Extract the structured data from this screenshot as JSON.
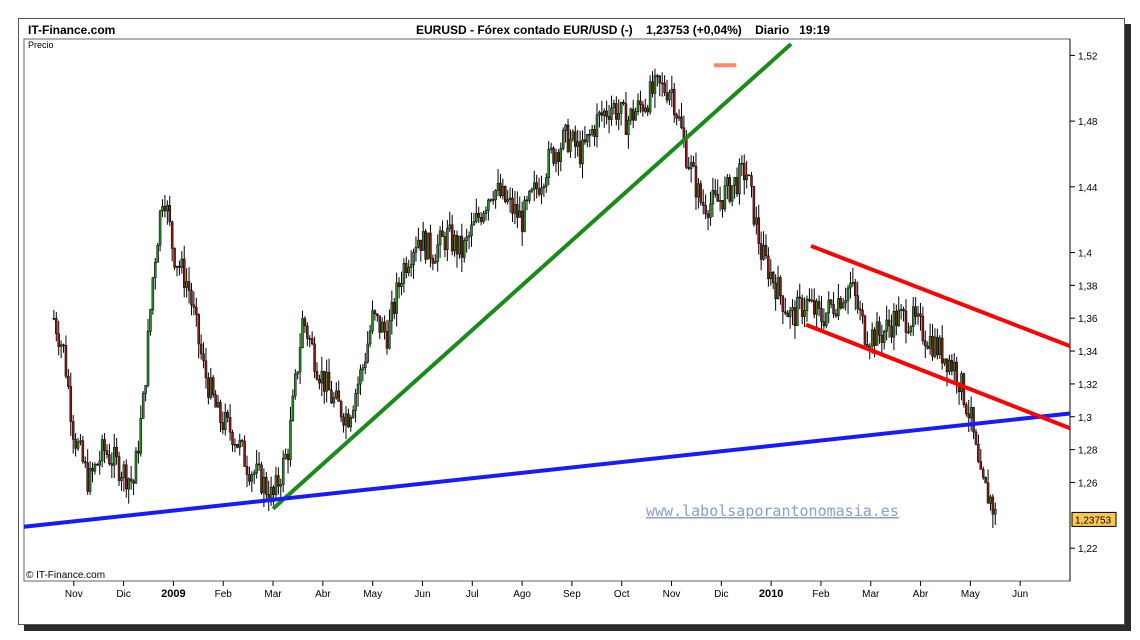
{
  "brand": "IT-Finance.com",
  "header": {
    "symbol": "EURUSD",
    "description": "Fórex contado EUR/USD (-)",
    "last": "1,23753",
    "change": "(+0,04%)",
    "period": "Diario",
    "time": "19:19"
  },
  "copyright": "© IT-Finance.com",
  "watermark": "www.labolsaporantonomasia.es",
  "colors": {
    "up_trend": "#1a8a1a",
    "support": "#1a1aff",
    "channel": "#ff0000",
    "top_mark": "#ff8866",
    "candle": "#000000",
    "last_box": "#ffc850"
  },
  "chart_data": {
    "type": "candlestick",
    "title": "EURUSD - Fórex contado EUR/USD (-)",
    "ylabel": "Precio",
    "ylim": [
      1.2,
      1.53
    ],
    "y_ticks": [
      "1,52",
      "1,48",
      "1,44",
      "1,4",
      "1,38",
      "1,36",
      "1,34",
      "1,32",
      "1,3",
      "1,28",
      "1,26",
      "1,22"
    ],
    "y_tick_values": [
      1.52,
      1.48,
      1.44,
      1.4,
      1.38,
      1.36,
      1.34,
      1.32,
      1.3,
      1.28,
      1.26,
      1.22
    ],
    "x_ticks": [
      "Nov",
      "Dic",
      "2009",
      "Feb",
      "Mar",
      "Abr",
      "May",
      "Jun",
      "Jul",
      "Ago",
      "Sep",
      "Oct",
      "Nov",
      "Dic",
      "2010",
      "Feb",
      "Mar",
      "Abr",
      "May",
      "Jun"
    ],
    "x_tick_positions": [
      1,
      2,
      3,
      4,
      5,
      6,
      7,
      8,
      9,
      10,
      11,
      12,
      13,
      14,
      15,
      16,
      17,
      18,
      19,
      20
    ],
    "x_bold": [
      "2009",
      "2010"
    ],
    "last_value": "1,23753",
    "last_value_num": 1.2375,
    "series": [
      {
        "name": "EURUSD",
        "x": [
          0.6,
          0.8,
          1.0,
          1.3,
          1.6,
          1.9,
          2.2,
          2.4,
          2.6,
          2.8,
          3.0,
          3.3,
          3.6,
          3.9,
          4.2,
          4.5,
          4.8,
          5.0,
          5.3,
          5.6,
          5.9,
          6.2,
          6.5,
          6.8,
          7.0,
          7.3,
          7.6,
          7.9,
          8.2,
          8.5,
          8.8,
          9.1,
          9.4,
          9.7,
          10.0,
          10.3,
          10.6,
          10.9,
          11.2,
          11.5,
          11.8,
          12.1,
          12.4,
          12.7,
          13.0,
          13.3,
          13.6,
          13.9,
          14.2,
          14.5,
          14.8,
          15.1,
          15.4,
          15.7,
          16.0,
          16.3,
          16.6,
          16.9,
          17.2,
          17.5,
          17.8,
          18.1,
          18.4,
          18.7,
          19.0,
          19.2,
          19.4,
          19.5
        ],
        "y": [
          1.36,
          1.34,
          1.29,
          1.26,
          1.28,
          1.27,
          1.26,
          1.31,
          1.39,
          1.44,
          1.4,
          1.38,
          1.33,
          1.3,
          1.29,
          1.27,
          1.26,
          1.25,
          1.28,
          1.36,
          1.33,
          1.31,
          1.3,
          1.33,
          1.36,
          1.35,
          1.39,
          1.41,
          1.4,
          1.41,
          1.4,
          1.42,
          1.44,
          1.43,
          1.42,
          1.44,
          1.46,
          1.47,
          1.46,
          1.48,
          1.49,
          1.48,
          1.49,
          1.5,
          1.5,
          1.46,
          1.43,
          1.43,
          1.44,
          1.45,
          1.4,
          1.38,
          1.36,
          1.37,
          1.36,
          1.37,
          1.38,
          1.35,
          1.35,
          1.36,
          1.36,
          1.35,
          1.34,
          1.33,
          1.3,
          1.26,
          1.25,
          1.24
        ]
      }
    ],
    "annotations": [
      {
        "type": "line",
        "name": "green-uptrend-line",
        "from": [
          5.0,
          1.244
        ],
        "to": [
          15.4,
          1.527
        ]
      },
      {
        "type": "line",
        "name": "blue-support-line",
        "from": [
          0.0,
          1.233
        ],
        "to": [
          21.0,
          1.302
        ]
      },
      {
        "type": "line",
        "name": "red-channel-upper",
        "from": [
          15.8,
          1.404
        ],
        "to": [
          21.0,
          1.343
        ]
      },
      {
        "type": "line",
        "name": "red-channel-lower",
        "from": [
          15.7,
          1.356
        ],
        "to": [
          21.0,
          1.293
        ]
      },
      {
        "type": "segment",
        "name": "orange-top-mark",
        "from": [
          13.85,
          1.514
        ],
        "to": [
          14.3,
          1.514
        ]
      }
    ]
  }
}
